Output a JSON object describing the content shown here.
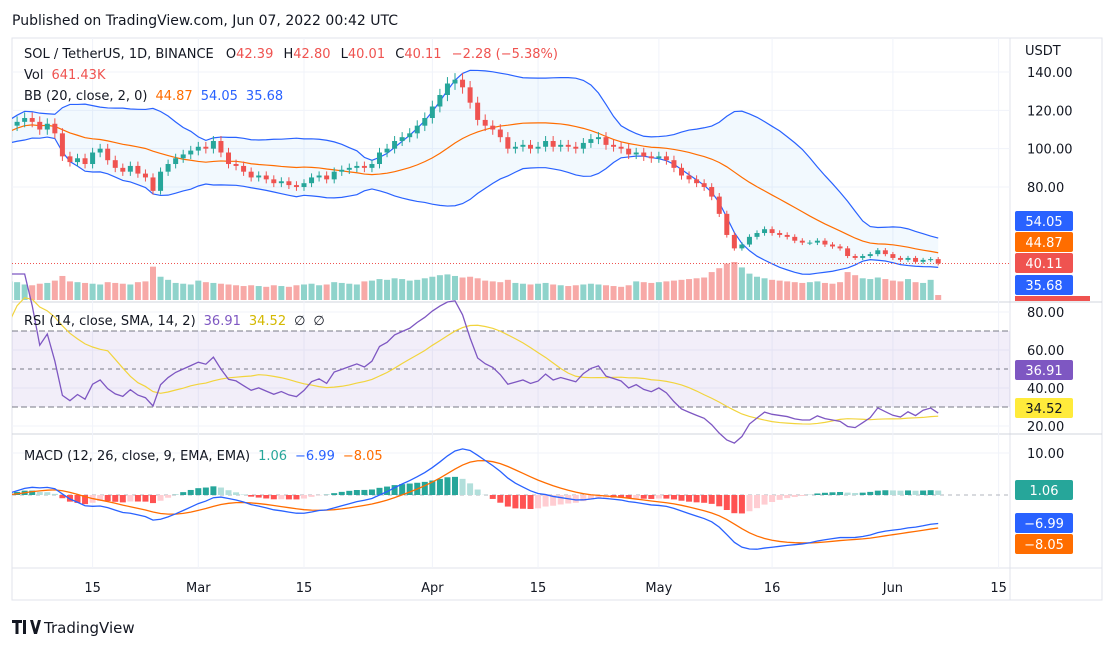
{
  "published": "Published on TradingView.com, Jun 07, 2022 00:42 UTC",
  "footer_logo": "TradingView",
  "colors": {
    "up": "#26a69a",
    "down": "#ef5350",
    "bb_basis": "#ff6d00",
    "bb_band": "#2962ff",
    "rsi": "#7e57c2",
    "rsi_sma": "#f2d43d",
    "macd": "#2962ff",
    "signal": "#ff6d00"
  },
  "legend": {
    "symbol": "SOL / TetherUS, 1D, BINANCE",
    "o_label": "O",
    "open": "42.39",
    "h_label": "H",
    "high": "42.80",
    "l_label": "L",
    "low": "40.01",
    "c_label": "C",
    "close": "40.11",
    "change": "−2.28 (−5.38%)",
    "vol_label": "Vol",
    "vol": "641.43K",
    "bb_label": "BB (20, close, 2, 0)",
    "bb_basis": "44.87",
    "bb_upper": "54.05",
    "bb_lower": "35.68",
    "rsi_label": "RSI (14, close, SMA, 14, 2)",
    "rsi": "36.91",
    "rsi_sma": "34.52",
    "rsi_x1": "∅",
    "rsi_x2": "∅",
    "macd_label": "MACD (12, 26, close, 9, EMA, EMA)",
    "hist": "1.06",
    "macd": "−6.99",
    "signal": "−8.05"
  },
  "price_axis": {
    "unit": "USDT",
    "ticks": [
      "140.00",
      "120.00",
      "100.00",
      "80.00"
    ],
    "badges": {
      "upper": "54.05",
      "basis": "44.87",
      "last": "40.11",
      "lower": "35.68"
    }
  },
  "rsi_axis": {
    "ticks": [
      "80.00",
      "60.00",
      "40.00",
      "20.00"
    ],
    "badges": {
      "rsi": "36.91",
      "sma": "34.52"
    }
  },
  "macd_axis": {
    "ticks": [
      "10.00"
    ],
    "badges": {
      "hist": "1.06",
      "macd": "−6.99",
      "signal": "−8.05"
    }
  },
  "chart_data": {
    "type": "candlestick",
    "start_date": "2022-02-03",
    "interval": "1D",
    "ylim": [
      20,
      150
    ],
    "closes": [
      106,
      112,
      114,
      116,
      114,
      110,
      113,
      108,
      96,
      93,
      95,
      92,
      98,
      100,
      94,
      90,
      88,
      91,
      87,
      85,
      78,
      88,
      92,
      95,
      97,
      99,
      101,
      100,
      104,
      98,
      92,
      91,
      88,
      85,
      86,
      84,
      82,
      83,
      81,
      80,
      82,
      85,
      86,
      84,
      88,
      89,
      90,
      91,
      90,
      92,
      98,
      100,
      104,
      106,
      108,
      112,
      116,
      122,
      128,
      134,
      136,
      132,
      124,
      115,
      112,
      110,
      106,
      100,
      101,
      102,
      100,
      101,
      104,
      101,
      102,
      101,
      100,
      103,
      105,
      106,
      102,
      101,
      100,
      97,
      98,
      96,
      95,
      96,
      94,
      90,
      86,
      84,
      82,
      80,
      75,
      66,
      55,
      48,
      50,
      54,
      56,
      58,
      56,
      55,
      54,
      52,
      51,
      51,
      52,
      50,
      49,
      48,
      44,
      43,
      44,
      45,
      47,
      45,
      43,
      42,
      43,
      41,
      42,
      42.39,
      40.11
    ],
    "volumes_k": [
      2600,
      2400,
      2300,
      2000,
      1900,
      2100,
      2200,
      2500,
      3100,
      2400,
      2300,
      2200,
      2100,
      2000,
      2300,
      2200,
      2100,
      2000,
      2300,
      2400,
      4300,
      3000,
      2600,
      2200,
      2100,
      2000,
      2500,
      2300,
      2200,
      2100,
      2000,
      1900,
      1800,
      1900,
      1800,
      1700,
      1900,
      1800,
      1700,
      1900,
      2000,
      2100,
      1900,
      2000,
      2300,
      2200,
      2100,
      2000,
      2400,
      2500,
      2700,
      2600,
      2800,
      2700,
      2500,
      2600,
      2800,
      3000,
      3200,
      3300,
      3100,
      2900,
      3000,
      2800,
      2500,
      2400,
      2300,
      2600,
      2200,
      2100,
      2000,
      2100,
      2200,
      2000,
      1900,
      1800,
      1900,
      2000,
      2100,
      2000,
      1900,
      1800,
      1700,
      1900,
      2400,
      2300,
      2200,
      2300,
      2400,
      2500,
      2600,
      2700,
      2800,
      2900,
      3600,
      4100,
      4700,
      4900,
      4200,
      3400,
      3000,
      2800,
      2600,
      2500,
      2400,
      2300,
      2200,
      2300,
      2400,
      2200,
      2100,
      2300,
      3600,
      3200,
      2800,
      2700,
      2900,
      2700,
      2500,
      2400,
      2700,
      2300,
      2200,
      2600,
      641.43
    ],
    "time_ticks": [
      {
        "date": "2022-02-15",
        "label": "15"
      },
      {
        "date": "2022-03-01",
        "label": "Mar"
      },
      {
        "date": "2022-03-15",
        "label": "15"
      },
      {
        "date": "2022-04-01",
        "label": "Apr"
      },
      {
        "date": "2022-04-15",
        "label": "15"
      },
      {
        "date": "2022-05-01",
        "label": "May"
      },
      {
        "date": "2022-05-16",
        "label": "16"
      },
      {
        "date": "2022-06-01",
        "label": "Jun"
      },
      {
        "date": "2022-06-15",
        "label": "15"
      }
    ],
    "rsi_bands": [
      70,
      50,
      30
    ]
  }
}
